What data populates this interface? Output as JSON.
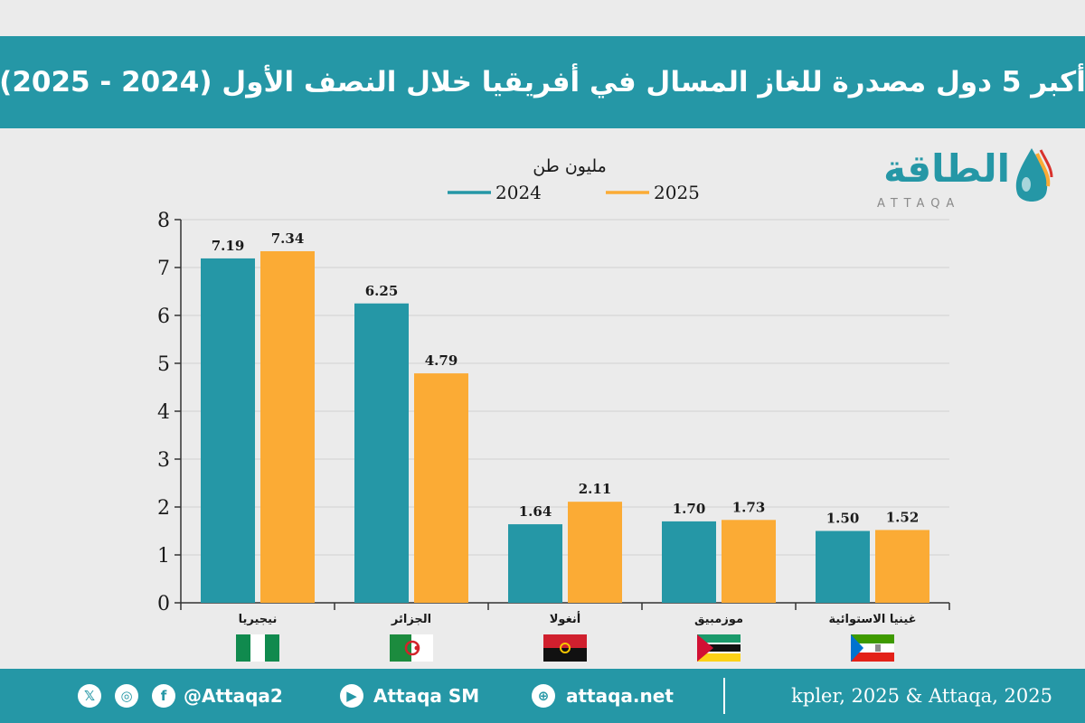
{
  "header": {
    "title": "أكبر 5 دول مصدرة للغاز المسال في أفريقيا خلال النصف الأول (2024 - 2025)"
  },
  "brand": {
    "arabic": "الطاقة",
    "latin": "ATTAQA"
  },
  "colors": {
    "teal": "#2597a6",
    "orange": "#fbab35",
    "background": "#ebebeb",
    "text": "#1a1a1a"
  },
  "chart_data": {
    "type": "bar",
    "unit_label": "مليون طن",
    "categories": [
      "نيجيريا",
      "الجزائر",
      "أنغولا",
      "موزمبيق",
      "غينيا الاستوائية"
    ],
    "flags": [
      "nigeria-flag",
      "algeria-flag",
      "angola-flag",
      "mozambique-flag",
      "equatorial-guinea-flag"
    ],
    "series": [
      {
        "name": "2024",
        "color": "#2597a6",
        "values": [
          7.19,
          6.25,
          1.64,
          1.7,
          1.5
        ],
        "labels": [
          "7.19",
          "6.25",
          "1.64",
          "1.70",
          "1.50"
        ]
      },
      {
        "name": "2025",
        "color": "#fbab35",
        "values": [
          7.34,
          4.79,
          2.11,
          1.73,
          1.52
        ],
        "labels": [
          "7.34",
          "4.79",
          "2.11",
          "1.73",
          "1.52"
        ]
      }
    ],
    "ylim": [
      0,
      8
    ],
    "yticks": [
      0,
      1,
      2,
      3,
      4,
      5,
      6,
      7,
      8
    ],
    "grid": true,
    "legend_position": "top"
  },
  "footer": {
    "social_handle": "@Attaqa2",
    "youtube": "Attaqa SM",
    "website": "attaqa.net",
    "source": "kpler, 2025 & Attaqa, 2025",
    "icons": [
      "x-icon",
      "instagram-icon",
      "facebook-icon",
      "youtube-icon",
      "globe-icon"
    ]
  }
}
